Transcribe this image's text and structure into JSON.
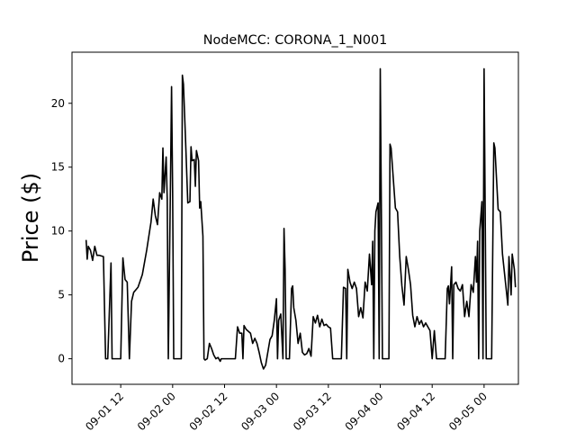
{
  "chart_data": {
    "type": "line",
    "title": "NodeMCC: CORONA_1_N001",
    "xlabel": "",
    "ylabel": "Price ($)",
    "grid": false,
    "legend": "none",
    "x_unit": "datetime",
    "xlim": [
      "2021-09-01 00:44",
      "2021-09-05 07:56"
    ],
    "ylim": [
      -2,
      24
    ],
    "yticks": [
      0,
      5,
      10,
      15,
      20
    ],
    "xticks": [
      {
        "value": "2021-09-01 12:00",
        "label": "09-01 12"
      },
      {
        "value": "2021-09-02 00:00",
        "label": "09-02 00"
      },
      {
        "value": "2021-09-02 12:00",
        "label": "09-02 12"
      },
      {
        "value": "2021-09-03 00:00",
        "label": "09-03 00"
      },
      {
        "value": "2021-09-03 12:00",
        "label": "09-03 12"
      },
      {
        "value": "2021-09-04 00:00",
        "label": "09-04 00"
      },
      {
        "value": "2021-09-04 12:00",
        "label": "09-04 12"
      },
      {
        "value": "2021-09-05 00:00",
        "label": "09-05 00"
      }
    ],
    "series": [
      {
        "color": "#000000",
        "points": [
          [
            "2021-09-01 04:00",
            9.3
          ],
          [
            "2021-09-01 04:15",
            7.8
          ],
          [
            "2021-09-01 04:30",
            8.8
          ],
          [
            "2021-09-01 05:00",
            8.5
          ],
          [
            "2021-09-01 05:30",
            7.7
          ],
          [
            "2021-09-01 06:00",
            8.8
          ],
          [
            "2021-09-01 06:30",
            8.1
          ],
          [
            "2021-09-01 07:00",
            8.1
          ],
          [
            "2021-09-01 08:00",
            8.0
          ],
          [
            "2021-09-01 08:30",
            0.0
          ],
          [
            "2021-09-01 09:00",
            0.0
          ],
          [
            "2021-09-01 09:45",
            7.5
          ],
          [
            "2021-09-01 10:00",
            0.0
          ],
          [
            "2021-09-01 12:00",
            0.0
          ],
          [
            "2021-09-01 12:30",
            7.9
          ],
          [
            "2021-09-01 13:00",
            6.2
          ],
          [
            "2021-09-01 13:30",
            6.0
          ],
          [
            "2021-09-01 14:00",
            0.0
          ],
          [
            "2021-09-01 14:30",
            4.5
          ],
          [
            "2021-09-01 15:00",
            5.2
          ],
          [
            "2021-09-01 15:30",
            5.4
          ],
          [
            "2021-09-01 16:00",
            5.6
          ],
          [
            "2021-09-01 17:00",
            6.6
          ],
          [
            "2021-09-01 18:00",
            8.5
          ],
          [
            "2021-09-01 19:00",
            10.7
          ],
          [
            "2021-09-01 19:30",
            12.5
          ],
          [
            "2021-09-01 20:00",
            11.2
          ],
          [
            "2021-09-01 20:30",
            10.5
          ],
          [
            "2021-09-01 21:00",
            13.0
          ],
          [
            "2021-09-01 21:30",
            12.5
          ],
          [
            "2021-09-01 21:45",
            16.5
          ],
          [
            "2021-09-01 22:00",
            13.0
          ],
          [
            "2021-09-01 22:30",
            15.8
          ],
          [
            "2021-09-01 22:45",
            12.5
          ],
          [
            "2021-09-01 23:00",
            0.0
          ],
          [
            "2021-09-01 23:30",
            13.8
          ],
          [
            "2021-09-01 23:45",
            21.3
          ],
          [
            "2021-09-02 00:00",
            13.0
          ],
          [
            "2021-09-02 00:15",
            0.0
          ],
          [
            "2021-09-02 02:00",
            0.0
          ],
          [
            "2021-09-02 02:15",
            22.2
          ],
          [
            "2021-09-02 02:30",
            21.5
          ],
          [
            "2021-09-02 03:00",
            17.0
          ],
          [
            "2021-09-02 03:30",
            12.2
          ],
          [
            "2021-09-02 04:00",
            12.3
          ],
          [
            "2021-09-02 04:15",
            16.6
          ],
          [
            "2021-09-02 04:30",
            15.5
          ],
          [
            "2021-09-02 05:00",
            15.6
          ],
          [
            "2021-09-02 05:15",
            13.5
          ],
          [
            "2021-09-02 05:30",
            16.3
          ],
          [
            "2021-09-02 06:00",
            15.5
          ],
          [
            "2021-09-02 06:15",
            11.8
          ],
          [
            "2021-09-02 06:30",
            12.3
          ],
          [
            "2021-09-02 07:00",
            9.6
          ],
          [
            "2021-09-02 07:15",
            0.0
          ],
          [
            "2021-09-02 07:30",
            -0.1
          ],
          [
            "2021-09-02 08:00",
            0.0
          ],
          [
            "2021-09-02 08:30",
            1.2
          ],
          [
            "2021-09-02 09:00",
            0.8
          ],
          [
            "2021-09-02 09:30",
            0.3
          ],
          [
            "2021-09-02 10:00",
            0.0
          ],
          [
            "2021-09-02 10:30",
            0.1
          ],
          [
            "2021-09-02 11:00",
            -0.2
          ],
          [
            "2021-09-02 11:15",
            0.0
          ],
          [
            "2021-09-02 14:30",
            0.0
          ],
          [
            "2021-09-02 15:00",
            2.5
          ],
          [
            "2021-09-02 15:30",
            2.0
          ],
          [
            "2021-09-02 16:00",
            2.0
          ],
          [
            "2021-09-02 16:15",
            0.0
          ],
          [
            "2021-09-02 16:30",
            2.6
          ],
          [
            "2021-09-02 17:00",
            2.3
          ],
          [
            "2021-09-02 18:00",
            2.0
          ],
          [
            "2021-09-02 18:30",
            1.2
          ],
          [
            "2021-09-02 19:00",
            1.6
          ],
          [
            "2021-09-02 19:30",
            1.2
          ],
          [
            "2021-09-02 20:00",
            0.5
          ],
          [
            "2021-09-02 20:30",
            -0.3
          ],
          [
            "2021-09-02 21:00",
            -0.8
          ],
          [
            "2021-09-02 21:30",
            -0.5
          ],
          [
            "2021-09-02 22:00",
            0.5
          ],
          [
            "2021-09-02 22:30",
            1.5
          ],
          [
            "2021-09-02 23:00",
            1.8
          ],
          [
            "2021-09-02 23:30",
            3.0
          ],
          [
            "2021-09-03 00:00",
            4.7
          ],
          [
            "2021-09-03 00:15",
            0.0
          ],
          [
            "2021-09-03 00:30",
            3.0
          ],
          [
            "2021-09-03 01:00",
            3.5
          ],
          [
            "2021-09-03 01:30",
            0.0
          ],
          [
            "2021-09-03 01:45",
            10.2
          ],
          [
            "2021-09-03 02:00",
            7.0
          ],
          [
            "2021-09-03 02:15",
            0.0
          ],
          [
            "2021-09-03 03:00",
            0.0
          ],
          [
            "2021-09-03 03:30",
            5.5
          ],
          [
            "2021-09-03 03:45",
            5.7
          ],
          [
            "2021-09-03 04:00",
            4.0
          ],
          [
            "2021-09-03 04:30",
            3.0
          ],
          [
            "2021-09-03 05:00",
            1.2
          ],
          [
            "2021-09-03 05:30",
            2.0
          ],
          [
            "2021-09-03 06:00",
            0.5
          ],
          [
            "2021-09-03 06:30",
            0.3
          ],
          [
            "2021-09-03 07:00",
            0.4
          ],
          [
            "2021-09-03 07:30",
            0.8
          ],
          [
            "2021-09-03 08:00",
            0.2
          ],
          [
            "2021-09-03 08:30",
            3.3
          ],
          [
            "2021-09-03 09:00",
            2.8
          ],
          [
            "2021-09-03 09:30",
            3.4
          ],
          [
            "2021-09-03 10:00",
            2.5
          ],
          [
            "2021-09-03 10:30",
            3.1
          ],
          [
            "2021-09-03 11:00",
            2.6
          ],
          [
            "2021-09-03 11:30",
            2.7
          ],
          [
            "2021-09-03 12:00",
            2.5
          ],
          [
            "2021-09-03 12:30",
            2.4
          ],
          [
            "2021-09-03 13:00",
            0.0
          ],
          [
            "2021-09-03 15:00",
            0.0
          ],
          [
            "2021-09-03 15:30",
            5.6
          ],
          [
            "2021-09-03 16:00",
            5.5
          ],
          [
            "2021-09-03 16:15",
            0.0
          ],
          [
            "2021-09-03 16:30",
            7.0
          ],
          [
            "2021-09-03 17:00",
            6.0
          ],
          [
            "2021-09-03 17:30",
            5.5
          ],
          [
            "2021-09-03 18:00",
            6.0
          ],
          [
            "2021-09-03 18:30",
            5.5
          ],
          [
            "2021-09-03 19:00",
            3.3
          ],
          [
            "2021-09-03 19:30",
            4.0
          ],
          [
            "2021-09-03 20:00",
            3.2
          ],
          [
            "2021-09-03 20:30",
            6.0
          ],
          [
            "2021-09-03 21:00",
            5.3
          ],
          [
            "2021-09-03 21:30",
            8.2
          ],
          [
            "2021-09-03 22:00",
            5.8
          ],
          [
            "2021-09-03 22:15",
            9.2
          ],
          [
            "2021-09-03 22:30",
            0.0
          ],
          [
            "2021-09-03 22:45",
            10.0
          ],
          [
            "2021-09-03 23:00",
            11.5
          ],
          [
            "2021-09-03 23:30",
            12.2
          ],
          [
            "2021-09-03 23:45",
            0.0
          ],
          [
            "2021-09-04 00:00",
            22.7
          ],
          [
            "2021-09-04 00:15",
            11.8
          ],
          [
            "2021-09-04 00:30",
            0.0
          ],
          [
            "2021-09-04 02:00",
            0.0
          ],
          [
            "2021-09-04 02:15",
            16.8
          ],
          [
            "2021-09-04 02:30",
            16.5
          ],
          [
            "2021-09-04 03:30",
            11.8
          ],
          [
            "2021-09-04 04:00",
            11.5
          ],
          [
            "2021-09-04 04:30",
            8.0
          ],
          [
            "2021-09-04 05:00",
            5.7
          ],
          [
            "2021-09-04 05:30",
            4.2
          ],
          [
            "2021-09-04 06:00",
            8.0
          ],
          [
            "2021-09-04 06:30",
            7.0
          ],
          [
            "2021-09-04 07:00",
            5.8
          ],
          [
            "2021-09-04 07:30",
            3.4
          ],
          [
            "2021-09-04 08:00",
            2.5
          ],
          [
            "2021-09-04 08:30",
            3.3
          ],
          [
            "2021-09-04 09:00",
            2.7
          ],
          [
            "2021-09-04 09:30",
            3.0
          ],
          [
            "2021-09-04 10:00",
            2.5
          ],
          [
            "2021-09-04 10:30",
            2.8
          ],
          [
            "2021-09-04 11:00",
            2.5
          ],
          [
            "2021-09-04 11:30",
            2.2
          ],
          [
            "2021-09-04 12:00",
            0.0
          ],
          [
            "2021-09-04 12:30",
            2.2
          ],
          [
            "2021-09-04 13:00",
            0.0
          ],
          [
            "2021-09-04 15:00",
            0.0
          ],
          [
            "2021-09-04 15:30",
            5.5
          ],
          [
            "2021-09-04 15:45",
            5.7
          ],
          [
            "2021-09-04 16:00",
            4.3
          ],
          [
            "2021-09-04 16:30",
            7.2
          ],
          [
            "2021-09-04 16:45",
            0.0
          ],
          [
            "2021-09-04 17:00",
            5.8
          ],
          [
            "2021-09-04 17:30",
            6.0
          ],
          [
            "2021-09-04 18:00",
            5.5
          ],
          [
            "2021-09-04 18:30",
            5.3
          ],
          [
            "2021-09-04 19:00",
            5.8
          ],
          [
            "2021-09-04 19:30",
            3.3
          ],
          [
            "2021-09-04 20:00",
            4.5
          ],
          [
            "2021-09-04 20:30",
            3.3
          ],
          [
            "2021-09-04 21:00",
            5.8
          ],
          [
            "2021-09-04 21:30",
            5.2
          ],
          [
            "2021-09-04 22:00",
            8.0
          ],
          [
            "2021-09-04 22:15",
            6.0
          ],
          [
            "2021-09-04 22:30",
            9.2
          ],
          [
            "2021-09-04 22:45",
            0.0
          ],
          [
            "2021-09-04 23:00",
            10.0
          ],
          [
            "2021-09-04 23:30",
            12.3
          ],
          [
            "2021-09-04 23:45",
            0.0
          ],
          [
            "2021-09-05 00:00",
            22.7
          ],
          [
            "2021-09-05 00:15",
            11.8
          ],
          [
            "2021-09-05 00:30",
            0.0
          ],
          [
            "2021-09-05 01:45",
            0.0
          ],
          [
            "2021-09-05 02:15",
            16.9
          ],
          [
            "2021-09-05 02:30",
            16.5
          ],
          [
            "2021-09-05 03:15",
            11.7
          ],
          [
            "2021-09-05 03:45",
            11.5
          ],
          [
            "2021-09-05 04:15",
            8.2
          ],
          [
            "2021-09-05 05:00",
            5.8
          ],
          [
            "2021-09-05 05:30",
            4.2
          ],
          [
            "2021-09-05 05:45",
            8.0
          ],
          [
            "2021-09-05 06:15",
            5.0
          ],
          [
            "2021-09-05 06:30",
            8.2
          ],
          [
            "2021-09-05 07:00",
            7.0
          ],
          [
            "2021-09-05 07:15",
            5.6
          ]
        ]
      }
    ]
  }
}
